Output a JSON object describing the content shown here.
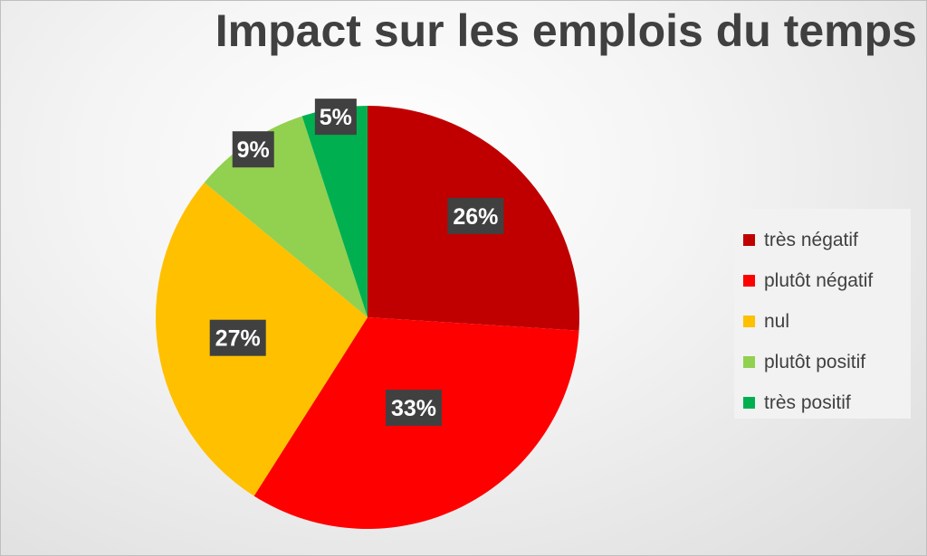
{
  "chart_data": {
    "type": "pie",
    "title": "Impact sur les emplois du temps",
    "categories": [
      "très négatif",
      "plutôt négatif",
      "nul",
      "plutôt positif",
      "très positif"
    ],
    "values": [
      26,
      33,
      27,
      9,
      5
    ],
    "labels": [
      "26%",
      "33%",
      "27%",
      "9%",
      "5%"
    ],
    "colors": [
      "#c00000",
      "#ff0000",
      "#ffc000",
      "#92d050",
      "#00b050"
    ],
    "start_angle_deg": 0,
    "direction": "clockwise",
    "legend_position": "right"
  }
}
